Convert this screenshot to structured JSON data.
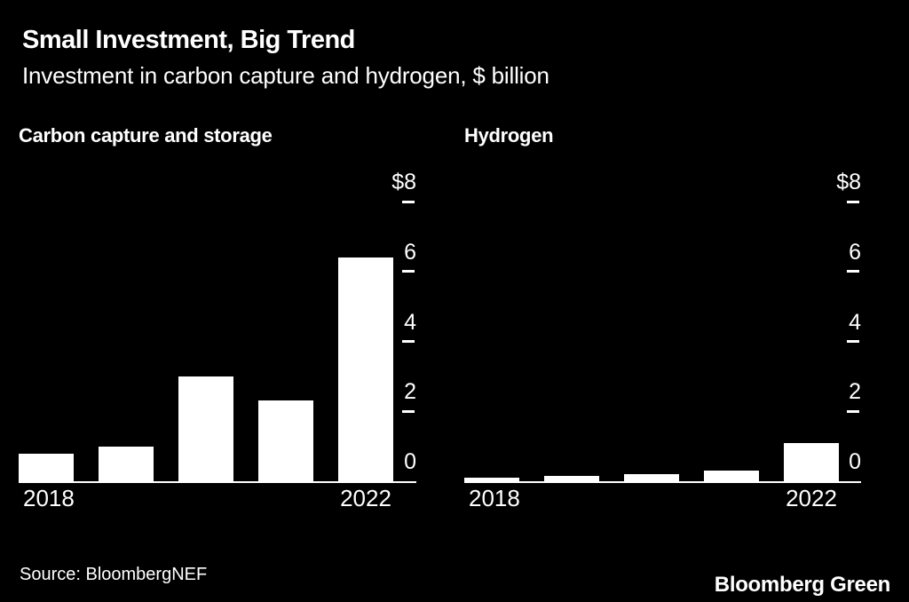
{
  "header": {
    "title": "Small Investment, Big Trend",
    "subtitle": "Investment in carbon capture and hydrogen, $ billion"
  },
  "footer": {
    "source": "Source: BloombergNEF",
    "brand": "Bloomberg Green"
  },
  "colors": {
    "background": "#000000",
    "bar": "#ffffff",
    "text": "#ffffff",
    "axis": "#ffffff"
  },
  "chart_data": [
    {
      "type": "bar",
      "title": "Carbon capture and storage",
      "xlabel": "",
      "ylabel": "$ billion",
      "x": [
        "2018",
        "2019",
        "2020",
        "2021",
        "2022"
      ],
      "values": [
        0.8,
        1.0,
        3.0,
        2.3,
        6.4
      ],
      "ylim": [
        0,
        8
      ],
      "yticks": [
        8,
        6,
        4,
        2,
        0
      ],
      "ytick_labels": [
        "$8",
        "6",
        "4",
        "2",
        "0"
      ],
      "xtick_labels_shown": [
        "2018",
        "2022"
      ],
      "grid": false,
      "legend": false,
      "bar_color": "#ffffff"
    },
    {
      "type": "bar",
      "title": "Hydrogen",
      "xlabel": "",
      "ylabel": "$ billion",
      "x": [
        "2018",
        "2019",
        "2020",
        "2021",
        "2022"
      ],
      "values": [
        0.1,
        0.15,
        0.2,
        0.3,
        1.1
      ],
      "ylim": [
        0,
        8
      ],
      "yticks": [
        8,
        6,
        4,
        2,
        0
      ],
      "ytick_labels": [
        "$8",
        "6",
        "4",
        "2",
        "0"
      ],
      "xtick_labels_shown": [
        "2018",
        "2022"
      ],
      "grid": false,
      "legend": false,
      "bar_color": "#ffffff"
    }
  ]
}
